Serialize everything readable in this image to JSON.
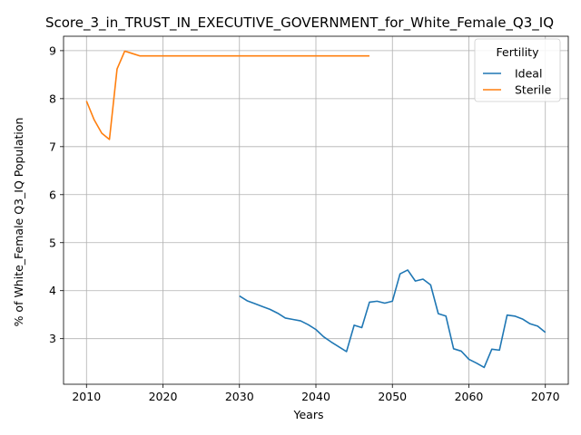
{
  "chart_data": {
    "type": "line",
    "title": "Score_3_in_TRUST_IN_EXECUTIVE_GOVERNMENT_for_White_Female_Q3_IQ",
    "xlabel": "Years",
    "ylabel": "% of White_Female Q3_IQ Population",
    "xlim": [
      2007,
      2073
    ],
    "ylim": [
      2.05,
      9.3
    ],
    "xticks": [
      2010,
      2020,
      2030,
      2040,
      2050,
      2060,
      2070
    ],
    "yticks": [
      3,
      4,
      5,
      6,
      7,
      8,
      9
    ],
    "grid": true,
    "legend": {
      "title": "Fertility",
      "placement": "top-right"
    },
    "series": [
      {
        "name": "Ideal",
        "color": "#1f77b4",
        "x": [
          2030,
          2031,
          2032,
          2033,
          2034,
          2035,
          2036,
          2037,
          2038,
          2039,
          2040,
          2041,
          2042,
          2043,
          2044,
          2045,
          2046,
          2047,
          2048,
          2049,
          2050,
          2051,
          2052,
          2053,
          2054,
          2055,
          2056,
          2057,
          2058,
          2059,
          2060,
          2061,
          2062,
          2063,
          2064,
          2065,
          2066,
          2067,
          2068,
          2069,
          2070
        ],
        "y": [
          3.89,
          3.79,
          3.73,
          3.67,
          3.61,
          3.53,
          3.43,
          3.4,
          3.37,
          3.29,
          3.19,
          3.04,
          2.93,
          2.83,
          2.73,
          3.28,
          3.23,
          3.76,
          3.78,
          3.74,
          3.78,
          4.35,
          4.43,
          4.2,
          4.24,
          4.12,
          3.52,
          3.47,
          2.79,
          2.74,
          2.57,
          2.49,
          2.4,
          2.78,
          2.76,
          3.49,
          3.47,
          3.41,
          3.31,
          3.26,
          3.13
        ]
      },
      {
        "name": "Sterile",
        "color": "#ff7f0e",
        "x": [
          2010,
          2011,
          2012,
          2013,
          2014,
          2015,
          2016,
          2017,
          2018,
          2019,
          2020,
          2021,
          2022,
          2023,
          2024,
          2025,
          2026,
          2027,
          2028,
          2029,
          2030,
          2031,
          2032,
          2033,
          2034,
          2035,
          2036,
          2037,
          2038,
          2039,
          2040,
          2041,
          2042,
          2043,
          2044,
          2045,
          2046,
          2047
        ],
        "y": [
          7.95,
          7.56,
          7.28,
          7.15,
          8.62,
          8.99,
          8.94,
          8.89,
          8.89,
          8.89,
          8.89,
          8.89,
          8.89,
          8.89,
          8.89,
          8.89,
          8.89,
          8.89,
          8.89,
          8.89,
          8.89,
          8.89,
          8.89,
          8.89,
          8.89,
          8.89,
          8.89,
          8.89,
          8.89,
          8.89,
          8.89,
          8.89,
          8.89,
          8.89,
          8.89,
          8.89,
          8.89,
          8.89
        ]
      }
    ]
  }
}
